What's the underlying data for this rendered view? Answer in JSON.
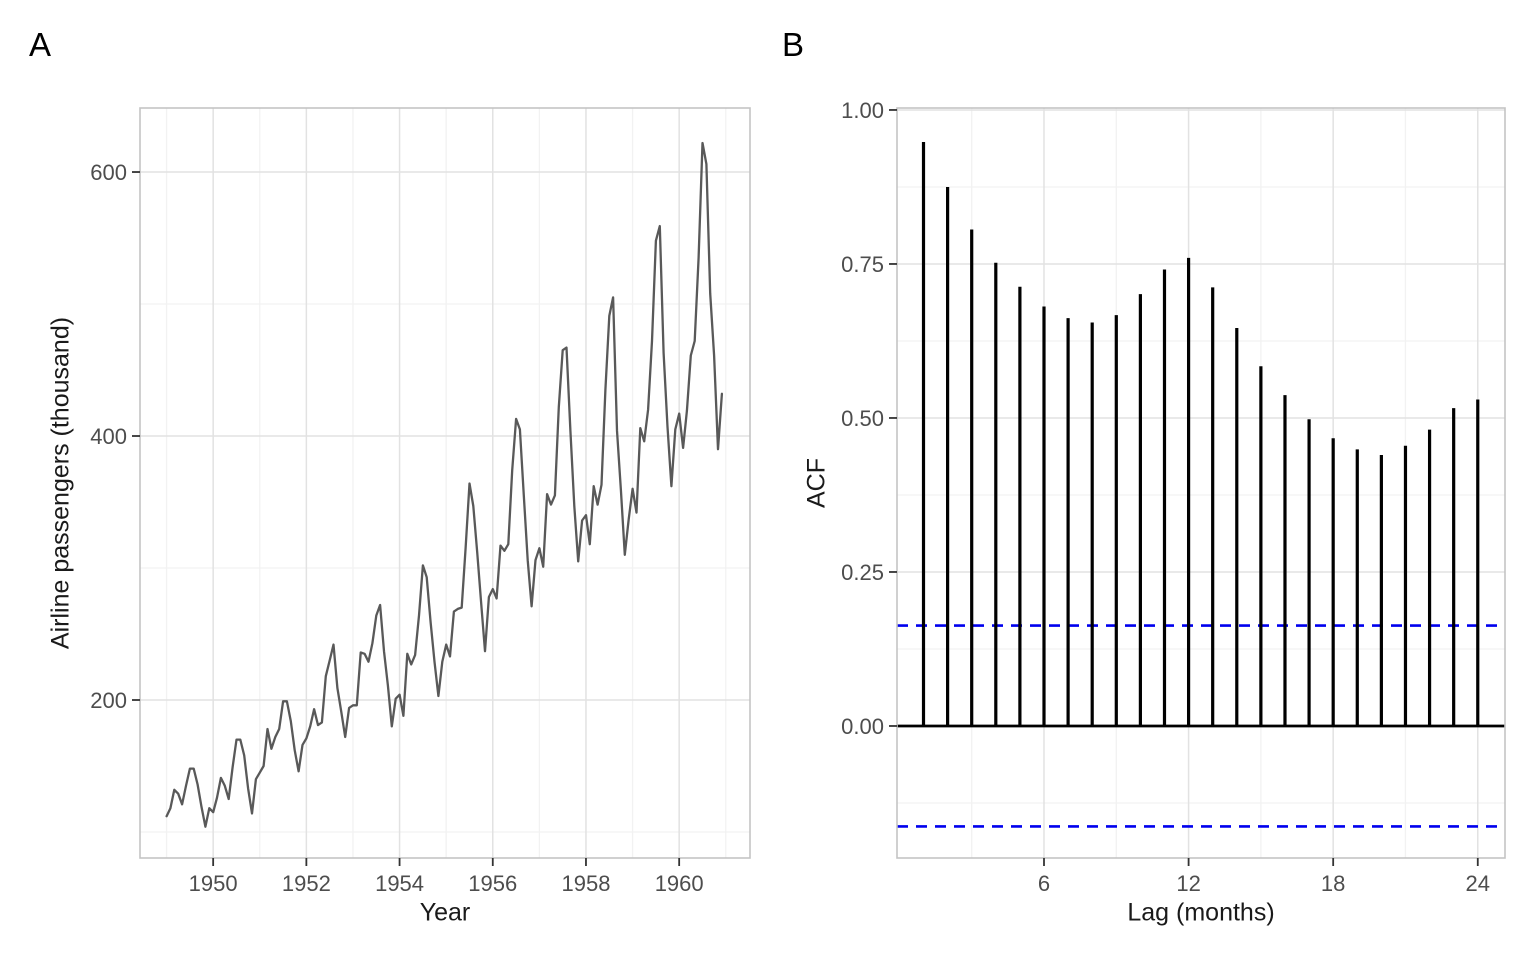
{
  "panels": [
    {
      "tag": "A"
    },
    {
      "tag": "B"
    }
  ],
  "style": {
    "background": "#FFFFFF",
    "grid_major_color": "#E2E2E2",
    "grid_minor_color": "#F2F2F2",
    "panel_border_color": "#C4C4C4",
    "tick_color": "#333333",
    "tick_label_color": "#4D4D4D",
    "axis_title_color": "#1A1A1A",
    "tag_color": "#000000"
  },
  "chart_data": [
    {
      "type": "line",
      "panel": "A",
      "xlabel": "Year",
      "ylabel": "Airline passengers (thousand)",
      "x_start_year": 1949,
      "points_per_year": 12,
      "values": [
        112,
        118,
        132,
        129,
        121,
        135,
        148,
        148,
        136,
        119,
        104,
        118,
        115,
        126,
        141,
        135,
        125,
        149,
        170,
        170,
        158,
        133,
        114,
        140,
        145,
        150,
        178,
        163,
        172,
        178,
        199,
        199,
        184,
        162,
        146,
        166,
        171,
        180,
        193,
        181,
        183,
        218,
        230,
        242,
        209,
        191,
        172,
        194,
        196,
        196,
        236,
        235,
        229,
        243,
        264,
        272,
        237,
        211,
        180,
        201,
        204,
        188,
        235,
        227,
        234,
        264,
        302,
        293,
        259,
        229,
        203,
        229,
        242,
        233,
        267,
        269,
        270,
        315,
        364,
        347,
        312,
        274,
        237,
        278,
        284,
        277,
        317,
        313,
        318,
        374,
        413,
        405,
        355,
        306,
        271,
        306,
        315,
        301,
        356,
        348,
        355,
        422,
        465,
        467,
        404,
        347,
        305,
        336,
        340,
        318,
        362,
        348,
        363,
        435,
        491,
        505,
        404,
        359,
        310,
        337,
        360,
        342,
        406,
        396,
        420,
        472,
        548,
        559,
        463,
        407,
        362,
        405,
        417,
        391,
        419,
        461,
        472,
        535,
        622,
        606,
        508,
        461,
        390,
        432
      ],
      "x_tick_values": [
        1950,
        1952,
        1954,
        1956,
        1958,
        1960
      ],
      "x_tick_labels": [
        "1950",
        "1952",
        "1954",
        "1956",
        "1958",
        "1960"
      ],
      "x_minor_values": [
        1949,
        1951,
        1953,
        1955,
        1957,
        1959,
        1961
      ],
      "y_tick_values": [
        600,
        400,
        200
      ],
      "y_tick_labels": [
        "600",
        "400",
        "200"
      ],
      "y_minor_values": [
        500,
        300,
        100
      ],
      "xlim": [
        1948.43,
        1961.52
      ],
      "ylim": [
        80.3,
        648.5
      ],
      "grid": true,
      "line_color": "#595959"
    },
    {
      "type": "bar",
      "panel": "B",
      "xlabel": "Lag (months)",
      "ylabel": "ACF",
      "lags": [
        1,
        2,
        3,
        4,
        5,
        6,
        7,
        8,
        9,
        10,
        11,
        12,
        13,
        14,
        15,
        16,
        17,
        18,
        19,
        20,
        21,
        22,
        23,
        24
      ],
      "values": [
        0.948,
        0.875,
        0.806,
        0.752,
        0.713,
        0.681,
        0.662,
        0.655,
        0.667,
        0.701,
        0.741,
        0.76,
        0.712,
        0.646,
        0.584,
        0.537,
        0.498,
        0.467,
        0.449,
        0.44,
        0.455,
        0.481,
        0.516,
        0.53
      ],
      "x_tick_values": [
        6,
        12,
        18,
        24
      ],
      "x_tick_labels": [
        "6",
        "12",
        "18",
        "24"
      ],
      "x_minor_values": [
        3,
        9,
        15,
        21
      ],
      "y_tick_values": [
        1.0,
        0.75,
        0.5,
        0.25,
        0.0
      ],
      "y_tick_labels": [
        "1.00",
        "0.75",
        "0.50",
        "0.25",
        "0.00"
      ],
      "y_minor_values": [
        0.875,
        0.625,
        0.375,
        0.125,
        -0.125
      ],
      "xlim": [
        -0.1,
        25.13
      ],
      "ylim": [
        -0.2143,
        1.0032
      ],
      "zero_line_value": 0,
      "confidence_bounds": [
        0.163,
        -0.163
      ],
      "grid": true,
      "bar_color": "#000000",
      "zero_line_color": "#000000",
      "conf_line_color": "#0000EE"
    }
  ]
}
